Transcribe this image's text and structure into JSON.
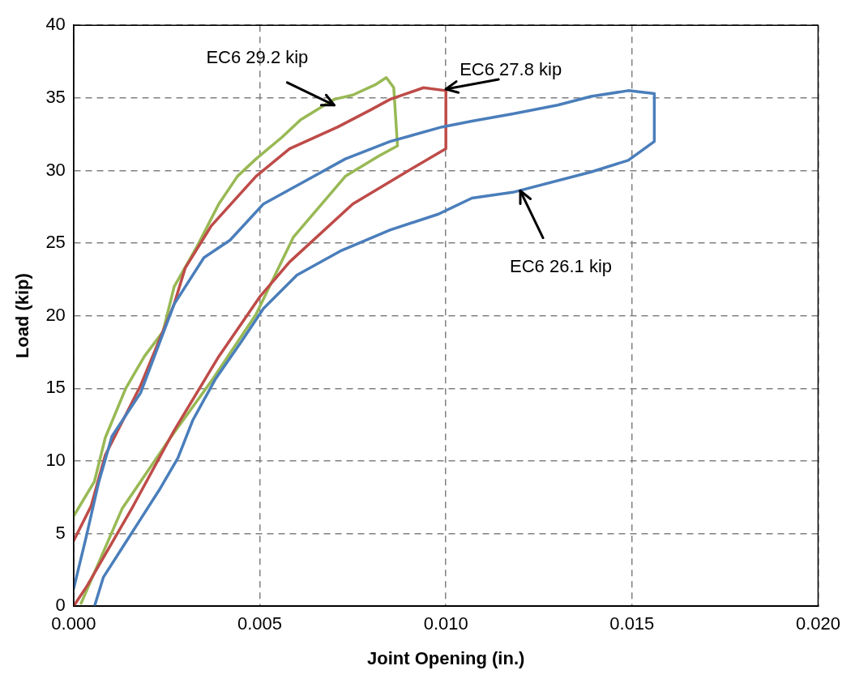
{
  "chart_data": {
    "type": "line",
    "xlabel": "Joint Opening (in.)",
    "ylabel": "Load (kip)",
    "xlim": [
      0,
      0.02
    ],
    "ylim": [
      0,
      40
    ],
    "xticks": [
      {
        "value": 0,
        "label": "0.000"
      },
      {
        "value": 0.005,
        "label": "0.005"
      },
      {
        "value": 0.01,
        "label": "0.010"
      },
      {
        "value": 0.015,
        "label": "0.015"
      },
      {
        "value": 0.02,
        "label": "0.020"
      }
    ],
    "yticks": [
      0,
      5,
      10,
      15,
      20,
      25,
      30,
      35,
      40
    ],
    "grid": true,
    "legend": false,
    "marker": "none",
    "line_style": "solid",
    "series": [
      {
        "color": "#4a7ebb",
        "x": [
          0,
          0.00034,
          0.00067,
          0.00103,
          0.0018,
          0.0027,
          0.0035,
          0.0042,
          0.0051,
          0.0061,
          0.0073,
          0.0085,
          0.0099,
          0.0107,
          0.0118,
          0.013,
          0.0139,
          0.0149,
          0.0156,
          0.0156,
          0.0149,
          0.0139,
          0.0118,
          0.0107,
          0.0098,
          0.0085,
          0.0072,
          0.006,
          0.0051,
          0.0045,
          0.0038,
          0.0032,
          0.0028,
          0.0023,
          0.0018,
          0.0013,
          0.0008,
          0.00056
        ],
        "values": [
          1.2,
          4.8,
          8.5,
          11.7,
          14.7,
          20.8,
          24.0,
          25.2,
          27.7,
          29.1,
          30.8,
          32.0,
          33.0,
          33.4,
          33.9,
          34.5,
          35.1,
          35.5,
          35.3,
          32.0,
          30.7,
          29.9,
          28.5,
          28.1,
          27.0,
          25.9,
          24.5,
          22.8,
          20.5,
          18.2,
          15.6,
          12.8,
          10.2,
          8.0,
          6.0,
          4.0,
          2.0,
          0
        ]
      },
      {
        "color": "#be4b48",
        "x": [
          0,
          0.00047,
          0.00085,
          0.0018,
          0.0027,
          0.003,
          0.0037,
          0.0049,
          0.0058,
          0.0071,
          0.008,
          0.0085,
          0.0094,
          0.01,
          0.01,
          0.009,
          0.0075,
          0.0058,
          0.005,
          0.0039,
          0.0027,
          0.0016,
          0.00036,
          0
        ],
        "values": [
          4.5,
          6.9,
          10.4,
          15.2,
          20.8,
          23.3,
          26.2,
          29.6,
          31.5,
          33.0,
          34.2,
          34.9,
          35.7,
          35.5,
          31.5,
          30.0,
          27.7,
          23.7,
          21.3,
          17.2,
          12.1,
          6.9,
          1.4,
          0
        ]
      },
      {
        "color": "#98b954",
        "x": [
          0,
          0.00056,
          0.00085,
          0.0014,
          0.0019,
          0.0024,
          0.0027,
          0.0033,
          0.0039,
          0.0044,
          0.0049,
          0.0056,
          0.0061,
          0.007,
          0.0075,
          0.0081,
          0.0084,
          0.0086,
          0.0087,
          0.0082,
          0.0073,
          0.0059,
          0.0049,
          0.0037,
          0.0026,
          0.0013,
          0.0002
        ],
        "values": [
          6.2,
          8.6,
          11.6,
          15.0,
          17.2,
          18.9,
          22.0,
          24.7,
          27.7,
          29.6,
          30.8,
          32.3,
          33.5,
          34.9,
          35.2,
          35.9,
          36.4,
          35.7,
          31.7,
          31.0,
          29.6,
          25.4,
          20.1,
          15.5,
          11.6,
          6.7,
          0.2
        ]
      }
    ],
    "annotations": [
      {
        "text": "EC6 29.2 kip",
        "x": 0.007,
        "y": 34.5
      },
      {
        "text": "EC6 27.8 kip",
        "x": 0.01,
        "y": 35.6
      },
      {
        "text": "EC6 26.1 kip",
        "x": 0.012,
        "y": 28.6
      }
    ]
  }
}
